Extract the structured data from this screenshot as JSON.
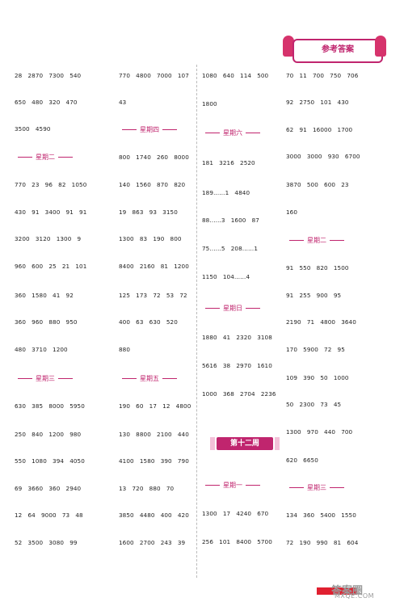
{
  "banner": {
    "title": "参考答案"
  },
  "week_badge": "第十二周",
  "headers": {
    "day4": "星期四",
    "day6": "星期六",
    "day2a": "星期二",
    "day2b": "星期二",
    "day7": "星期日",
    "day3a": "星期三",
    "day5": "星期五",
    "day1": "星期一",
    "day3b": "星期三"
  },
  "col1": [
    "28   2870   7300   540",
    "650   480   320   470",
    "3500   4590",
    "770   23   96   82   1050",
    "430   91   3400   91   91",
    "3200   3120   1300   9",
    "960   600   25   21   101",
    "360   1580   41   92",
    "360   960   880   950",
    "480   3710   1200",
    "630   385   8000   5950",
    "250   840   1200   980",
    "550   1080   394   4050",
    "69   3660   360   2940",
    "12   64   9000   73   48",
    "52   3500   3080   99"
  ],
  "col2": [
    "770   4800   7000   107",
    "43",
    "800   1740   260   8000",
    "140   1560   870   820",
    "19   863   93   3150",
    "1300   83   190   800",
    "8400   2160   81   1200",
    "125   173   72   53   72",
    "400   63   630   520",
    "880",
    "190   60   17   12   4800",
    "130   8800   2100   440",
    "4100   1580   390   790",
    "13   720   880   70",
    "3850   4480   400   420",
    "1600   2700   243   39"
  ],
  "col3": [
    "1080   640   114   500",
    "1800",
    "181   3216   2520",
    "189……1   4840",
    "88……3   1600   87",
    "75……5   208……1",
    "1150   104……4",
    "1880   41   2320   3108",
    "5616   38   2970   1610",
    "1000   368   2704   2236",
    "1300   17   4240   670",
    "256   101   8400   5700"
  ],
  "col4": [
    "70   11   700   750   706",
    "92   2750   101   430",
    "62   91   16000   1700",
    "3000   3000   930   6700",
    "3870   500   600   23",
    "160",
    "91   550   820   1500",
    "91   255   900   95",
    "2190   71   4800   3640",
    "170   5900   72   95",
    "109   390   50   1000",
    "50   2300   73   45",
    "1300   970   440   700",
    "620   6650",
    "134   360   5400   1550",
    "72   190   990   81   604"
  ],
  "watermark": {
    "mark": "答案圈",
    "url": "MXQE.COM"
  }
}
